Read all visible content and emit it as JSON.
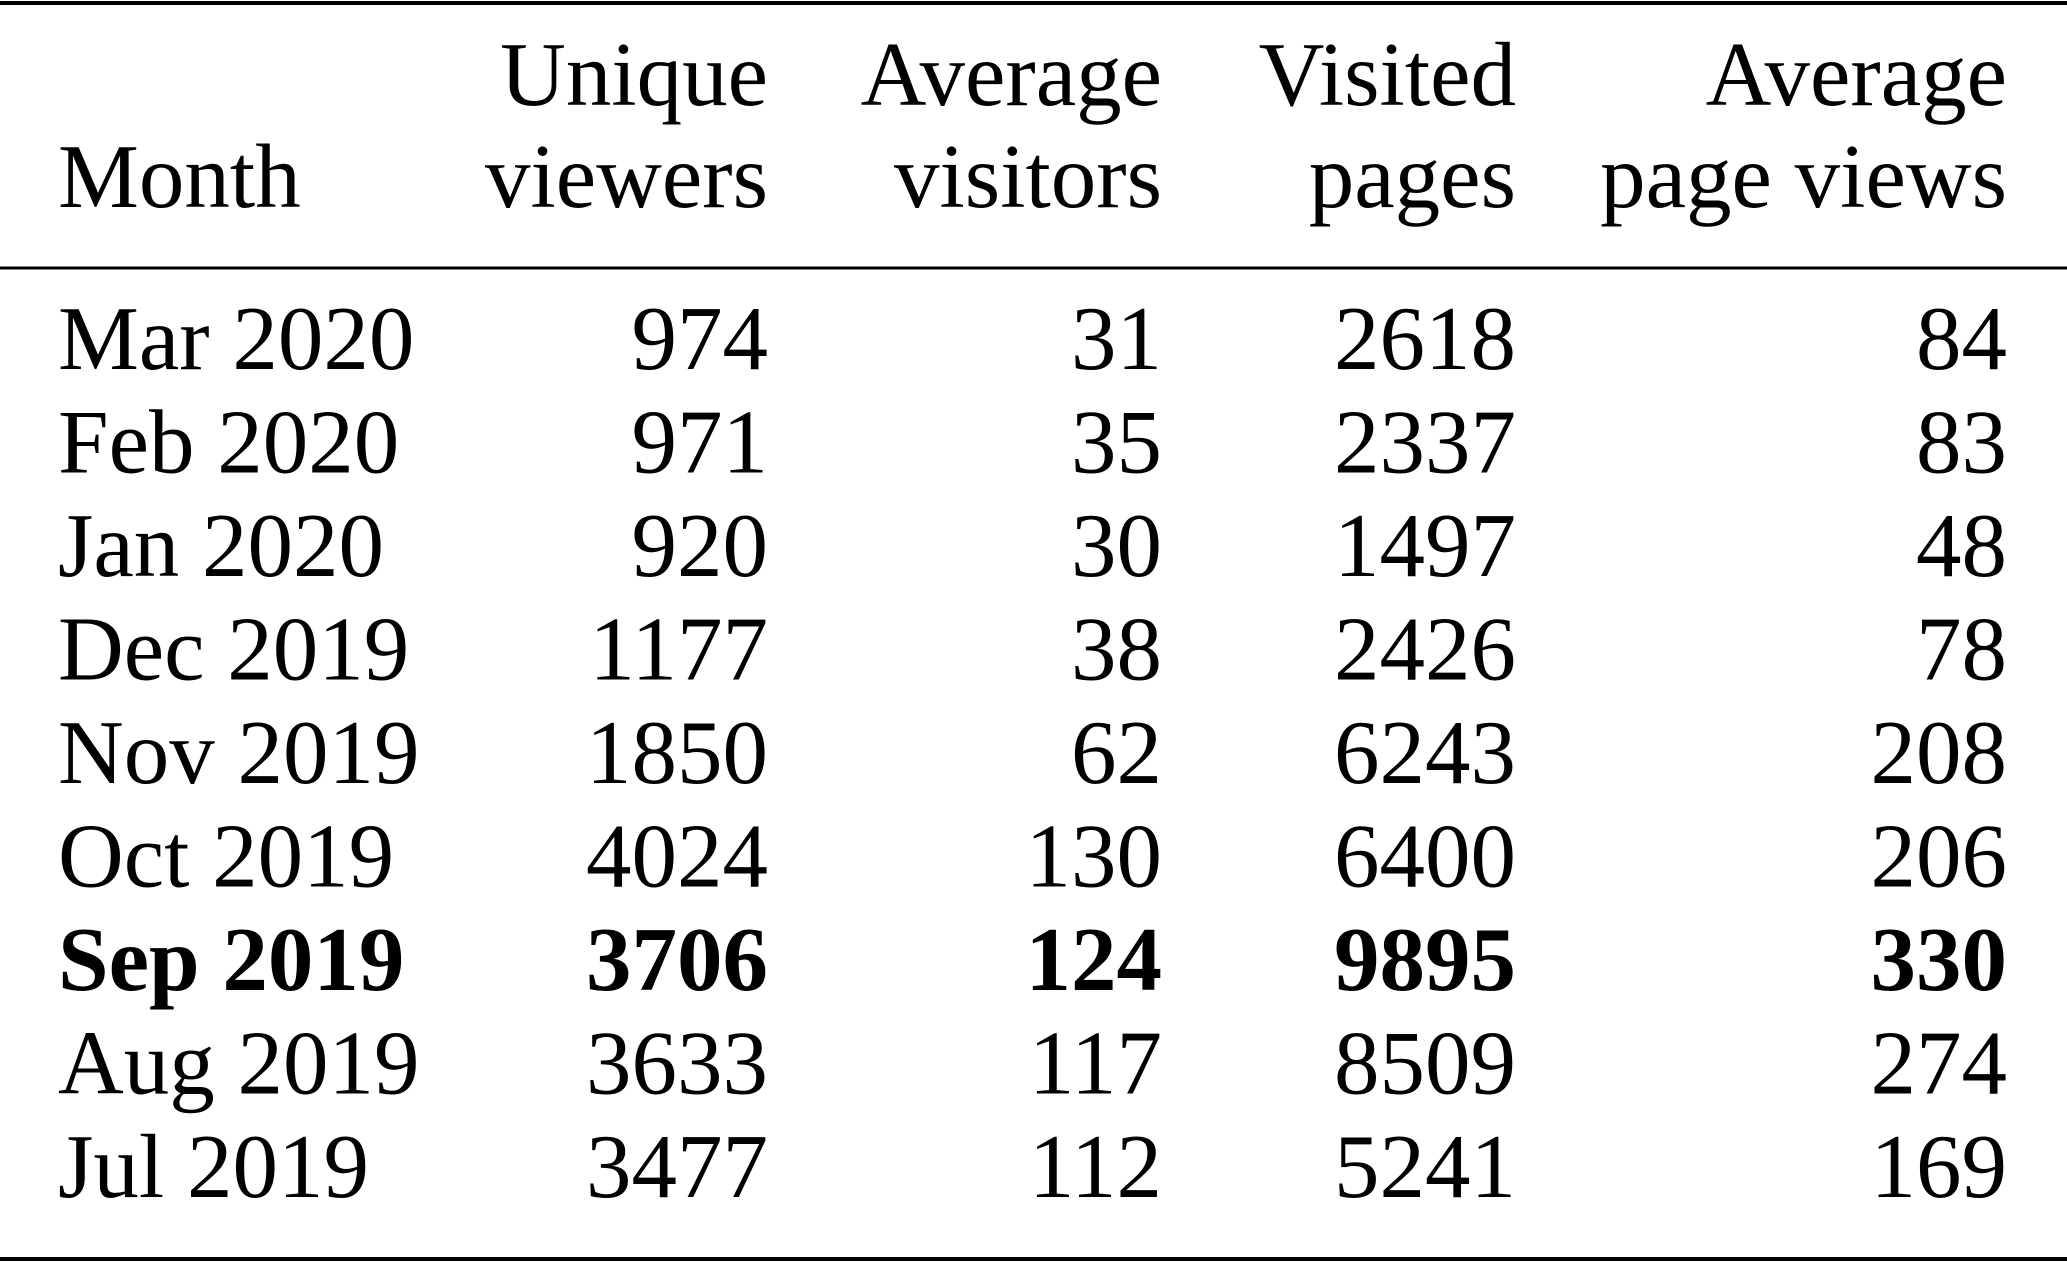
{
  "table": {
    "header": [
      [
        "Month"
      ],
      [
        "Unique",
        "viewers"
      ],
      [
        "Average",
        "visitors"
      ],
      [
        "Visited",
        "pages"
      ],
      [
        "Average",
        "page views"
      ]
    ],
    "rows": [
      {
        "cells": [
          "Mar 2020",
          974,
          31,
          2618,
          84
        ]
      },
      {
        "cells": [
          "Feb 2020",
          971,
          35,
          2337,
          83
        ]
      },
      {
        "cells": [
          "Jan 2020",
          920,
          30,
          1497,
          48
        ]
      },
      {
        "cells": [
          "Dec 2019",
          1177,
          38,
          2426,
          78
        ]
      },
      {
        "cells": [
          "Nov 2019",
          1850,
          62,
          6243,
          208
        ]
      },
      {
        "cells": [
          "Oct 2019",
          4024,
          130,
          6400,
          206
        ]
      },
      {
        "cells": [
          "Sep 2019",
          3706,
          124,
          9895,
          330
        ],
        "bold": true
      },
      {
        "cells": [
          "Aug 2019",
          3633,
          117,
          8509,
          274
        ]
      },
      {
        "cells": [
          "Jul 2019",
          3477,
          112,
          5241,
          169
        ]
      }
    ]
  }
}
